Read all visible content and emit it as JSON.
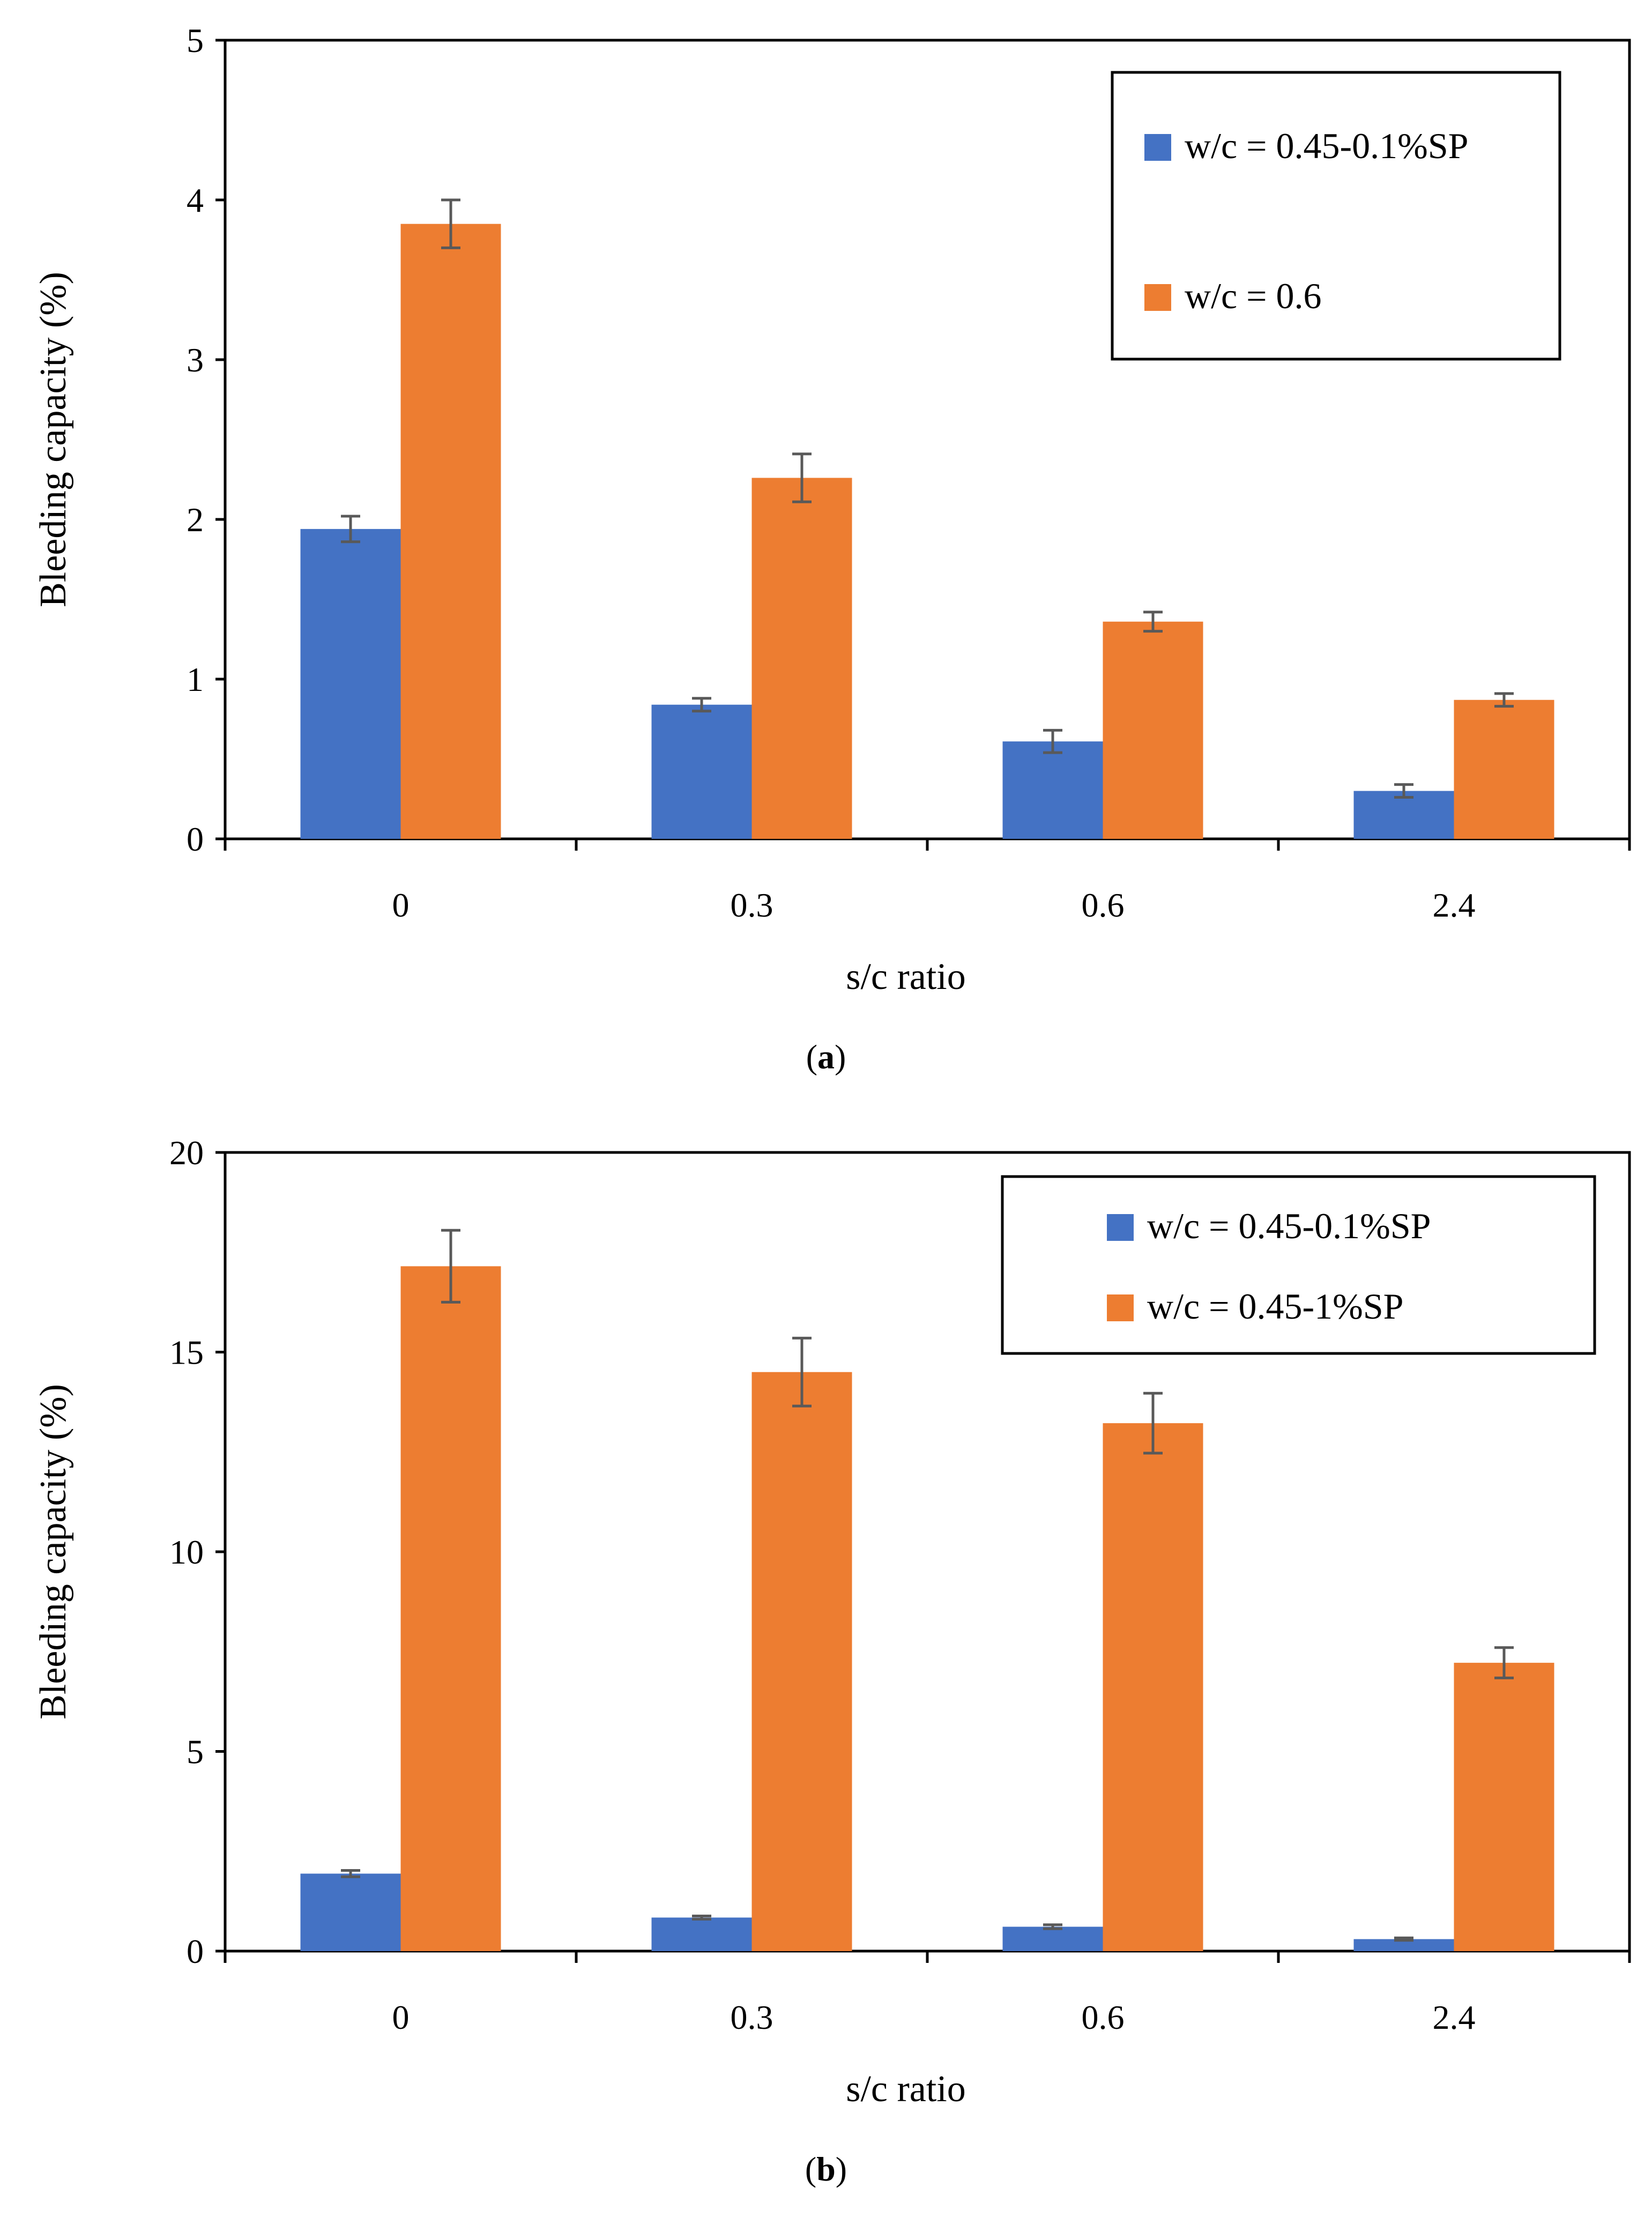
{
  "chart_data": [
    {
      "type": "bar",
      "caption_letter": "a",
      "categories": [
        "0",
        "0.3",
        "0.6",
        "2.4"
      ],
      "xlabel": "s/c ratio",
      "ylabel": "Bleeding capacity (%)",
      "ylim": [
        0,
        5
      ],
      "yticks": [
        0,
        1,
        2,
        3,
        4,
        5
      ],
      "legend_position": "top-right",
      "grid": false,
      "series": [
        {
          "name": "w/c = 0.45-0.1%SP",
          "color": "#4472C4",
          "values": [
            1.94,
            0.84,
            0.61,
            0.3
          ],
          "errors": [
            0.08,
            0.04,
            0.07,
            0.04
          ]
        },
        {
          "name": "w/c = 0.6",
          "color": "#ED7D31",
          "values": [
            3.85,
            2.26,
            1.36,
            0.87
          ],
          "errors": [
            0.15,
            0.15,
            0.06,
            0.04
          ]
        }
      ]
    },
    {
      "type": "bar",
      "caption_letter": "b",
      "categories": [
        "0",
        "0.3",
        "0.6",
        "2.4"
      ],
      "xlabel": "s/c ratio",
      "ylabel": "Bleeding capacity (%)",
      "ylim": [
        0,
        20
      ],
      "yticks": [
        0,
        5,
        10,
        15,
        20
      ],
      "legend_position": "top-right",
      "grid": false,
      "series": [
        {
          "name": "w/c = 0.45-0.1%SP",
          "color": "#4472C4",
          "values": [
            1.94,
            0.84,
            0.61,
            0.3
          ],
          "errors": [
            0.08,
            0.04,
            0.05,
            0.03
          ]
        },
        {
          "name": "w/c = 0.45-1%SP",
          "color": "#ED7D31",
          "values": [
            17.15,
            14.5,
            13.22,
            7.22
          ],
          "errors": [
            0.9,
            0.85,
            0.75,
            0.38
          ]
        }
      ]
    }
  ]
}
